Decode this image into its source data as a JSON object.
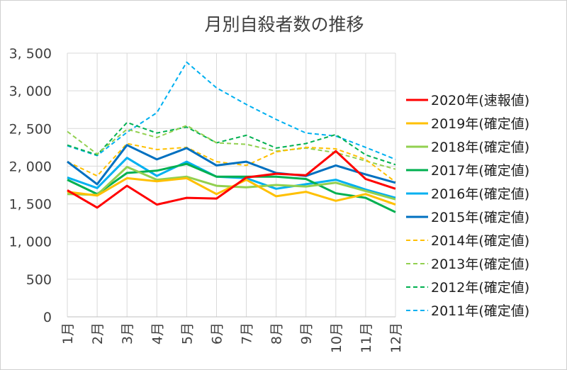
{
  "chart_data": {
    "type": "line",
    "title": "月別自殺者数の推移",
    "xlabel": "",
    "ylabel": "",
    "categories": [
      "1月",
      "2月",
      "3月",
      "4月",
      "5月",
      "6月",
      "7月",
      "8月",
      "9月",
      "10月",
      "11月",
      "12月"
    ],
    "ylim": [
      0,
      3500
    ],
    "yticks": [
      0,
      500,
      1000,
      1500,
      2000,
      2500,
      3000,
      3500
    ],
    "ytick_labels": [
      "0",
      "500",
      "1, 000",
      "1, 500",
      "2, 000",
      "2, 500",
      "3, 000",
      "3, 500"
    ],
    "grid": true,
    "legend_position": "right",
    "series": [
      {
        "name": "2020年(速報値)",
        "color": "#ff0000",
        "dash": "solid",
        "values": [
          1680,
          1450,
          1740,
          1490,
          1580,
          1570,
          1850,
          1900,
          1880,
          2200,
          1830,
          1700
        ]
      },
      {
        "name": "2019年(確定値)",
        "color": "#ffc000",
        "dash": "solid",
        "values": [
          1660,
          1610,
          1840,
          1800,
          1840,
          1630,
          1820,
          1600,
          1660,
          1540,
          1630,
          1490
        ]
      },
      {
        "name": "2018年(確定値)",
        "color": "#92d050",
        "dash": "solid",
        "values": [
          1630,
          1620,
          1990,
          1820,
          1860,
          1740,
          1720,
          1750,
          1730,
          1780,
          1670,
          1560
        ]
      },
      {
        "name": "2017年(確定値)",
        "color": "#00b050",
        "dash": "solid",
        "values": [
          1820,
          1630,
          1910,
          1940,
          2030,
          1860,
          1860,
          1860,
          1830,
          1640,
          1580,
          1390
        ]
      },
      {
        "name": "2016年(確定値)",
        "color": "#00b0f0",
        "dash": "solid",
        "values": [
          1850,
          1710,
          2110,
          1870,
          2060,
          1860,
          1840,
          1700,
          1760,
          1820,
          1690,
          1580
        ]
      },
      {
        "name": "2015年(確定値)",
        "color": "#0070c0",
        "dash": "solid",
        "values": [
          2060,
          1760,
          2280,
          2090,
          2240,
          2010,
          2060,
          1910,
          1870,
          2010,
          1890,
          1780
        ]
      },
      {
        "name": "2014年(確定値)",
        "color": "#ffc000",
        "dash": "dashed",
        "values": [
          2060,
          1870,
          2300,
          2220,
          2250,
          2060,
          2010,
          2190,
          2250,
          2230,
          2090,
          1790
        ]
      },
      {
        "name": "2013年(確定値)",
        "color": "#92d050",
        "dash": "dashed",
        "values": [
          2460,
          2160,
          2490,
          2380,
          2540,
          2310,
          2290,
          2200,
          2240,
          2180,
          2070,
          1960
        ]
      },
      {
        "name": "2012年(確定値)",
        "color": "#00b050",
        "dash": "dashed",
        "values": [
          2280,
          2150,
          2580,
          2440,
          2520,
          2310,
          2410,
          2240,
          2300,
          2420,
          2150,
          2020
        ]
      },
      {
        "name": "2011年(確定値)",
        "color": "#00b0f0",
        "dash": "dashed",
        "values": [
          2270,
          2140,
          2450,
          2710,
          3380,
          3040,
          2820,
          2620,
          2440,
          2400,
          2250,
          2090
        ]
      }
    ]
  }
}
